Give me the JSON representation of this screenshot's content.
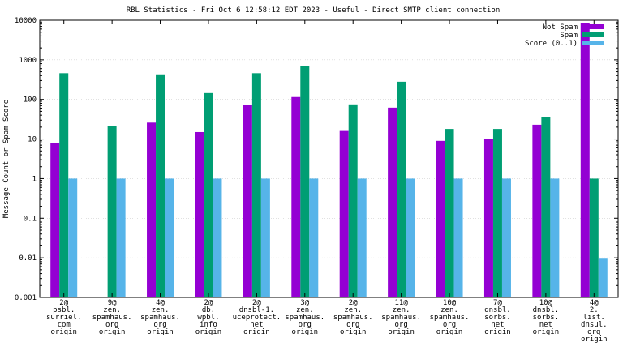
{
  "chart_data": {
    "type": "bar",
    "title": "RBL Statistics - Fri Oct  6 12:58:12 EDT 2023 - Useful - Direct SMTP client connection",
    "xlabel": "",
    "ylabel": "Message Count or Spam Score",
    "yscale": "log",
    "ylim": [
      0.001,
      10000
    ],
    "yticks": [
      "0.001",
      "0.01",
      "0.1",
      "1",
      "10",
      "100",
      "1000",
      "10000"
    ],
    "legend_position": "top-right",
    "categories": [
      [
        "2@",
        "psbl.",
        "surriel.",
        "com",
        "origin"
      ],
      [
        "9@",
        "zen.",
        "spamhaus.",
        "org",
        "origin"
      ],
      [
        "4@",
        "zen.",
        "spamhaus.",
        "org",
        "origin"
      ],
      [
        "2@",
        "db.",
        "wpbl.",
        "info",
        "origin"
      ],
      [
        "2@",
        "dnsbl-1.",
        "uceprotect.",
        "net",
        "origin"
      ],
      [
        "3@",
        "zen.",
        "spamhaus.",
        "org",
        "origin"
      ],
      [
        "2@",
        "zen.",
        "spamhaus.",
        "org",
        "origin"
      ],
      [
        "11@",
        "zen.",
        "spamhaus.",
        "org",
        "origin"
      ],
      [
        "10@",
        "zen.",
        "spamhaus.",
        "org",
        "origin"
      ],
      [
        "7@",
        "dnsbl.",
        "sorbs.",
        "net",
        "origin"
      ],
      [
        "10@",
        "dnsbl.",
        "sorbs.",
        "net",
        "origin"
      ],
      [
        "4@",
        "2.",
        "list.",
        "dnsul.",
        "org",
        "origin"
      ]
    ],
    "series": [
      {
        "name": "Not Spam",
        "color": "#9400d3",
        "values": [
          8,
          0.001,
          26,
          15,
          72,
          115,
          16,
          62,
          9,
          10,
          23,
          8500
        ]
      },
      {
        "name": "Spam",
        "color": "#009e73",
        "values": [
          460,
          21,
          430,
          145,
          460,
          710,
          75,
          280,
          18,
          18,
          35,
          1
        ]
      },
      {
        "name": "Score (0..1)",
        "color": "#56b4e9",
        "values": [
          1,
          1,
          1,
          1,
          1,
          1,
          1,
          1,
          1,
          1,
          1,
          0.0095
        ]
      }
    ],
    "legend_labels": [
      "Not Spam",
      "Spam",
      "Score (0..1)"
    ]
  }
}
